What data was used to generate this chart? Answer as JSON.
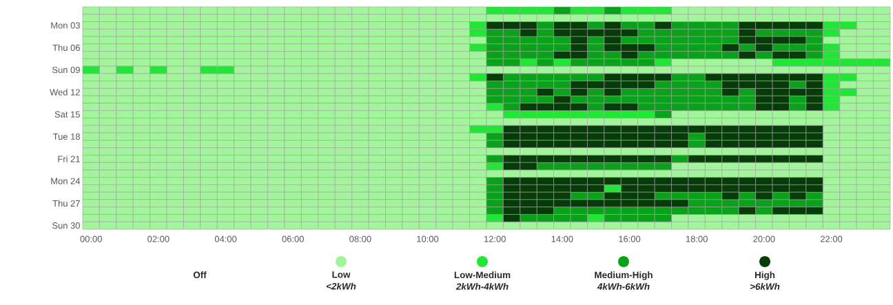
{
  "chart_data": {
    "type": "heatmap",
    "categories": [
      "00:00",
      null,
      null,
      null,
      "02:00",
      null,
      null,
      null,
      "04:00",
      null,
      null,
      null,
      "06:00",
      null,
      null,
      null,
      "08:00",
      null,
      null,
      null,
      "10:00",
      null,
      null,
      null,
      "12:00",
      null,
      null,
      null,
      "14:00",
      null,
      null,
      null,
      "16:00",
      null,
      null,
      null,
      "18:00",
      null,
      null,
      null,
      "20:00",
      null,
      null,
      null,
      "22:00",
      null,
      null,
      null
    ],
    "y_categories": [
      null,
      null,
      "Mon 03",
      null,
      null,
      "Thu 06",
      null,
      null,
      "Sun 09",
      null,
      null,
      "Wed 12",
      null,
      null,
      "Sat 15",
      null,
      null,
      "Tue 18",
      null,
      null,
      "Fri 21",
      null,
      null,
      "Mon 24",
      null,
      null,
      "Thu 27",
      null,
      null,
      "Sun 30"
    ],
    "cells": [
      [
        1,
        1,
        1,
        1,
        1,
        1,
        1,
        1,
        1,
        1,
        1,
        1,
        1,
        1,
        1,
        1,
        1,
        1,
        1,
        1,
        1,
        1,
        1,
        1,
        2,
        2,
        2,
        2,
        3,
        2,
        2,
        3,
        2,
        2,
        2,
        1,
        1,
        1,
        1,
        1,
        1,
        1,
        1,
        1,
        1,
        1,
        1,
        1
      ],
      [
        1,
        1,
        1,
        1,
        1,
        1,
        1,
        1,
        1,
        1,
        1,
        1,
        1,
        1,
        1,
        1,
        1,
        1,
        1,
        1,
        1,
        1,
        1,
        1,
        1,
        1,
        1,
        1,
        1,
        1,
        1,
        1,
        1,
        1,
        1,
        1,
        1,
        1,
        1,
        1,
        1,
        1,
        1,
        1,
        1,
        1,
        1,
        1
      ],
      [
        1,
        1,
        1,
        1,
        1,
        1,
        1,
        1,
        1,
        1,
        1,
        1,
        1,
        1,
        1,
        1,
        1,
        1,
        1,
        1,
        1,
        1,
        1,
        2,
        4,
        4,
        4,
        3,
        4,
        4,
        3,
        4,
        3,
        3,
        4,
        3,
        3,
        3,
        3,
        4,
        4,
        4,
        4,
        4,
        2,
        2,
        1,
        1
      ],
      [
        1,
        1,
        1,
        1,
        1,
        1,
        1,
        1,
        1,
        1,
        1,
        1,
        1,
        1,
        1,
        1,
        1,
        1,
        1,
        1,
        1,
        1,
        1,
        2,
        3,
        3,
        4,
        3,
        4,
        4,
        4,
        4,
        4,
        3,
        3,
        3,
        3,
        3,
        3,
        4,
        3,
        3,
        3,
        3,
        2,
        1,
        1,
        1
      ],
      [
        1,
        1,
        1,
        1,
        1,
        1,
        1,
        1,
        1,
        1,
        1,
        1,
        1,
        1,
        1,
        1,
        1,
        1,
        1,
        1,
        1,
        1,
        1,
        1,
        3,
        3,
        3,
        3,
        3,
        4,
        3,
        4,
        3,
        3,
        3,
        3,
        3,
        3,
        3,
        4,
        4,
        4,
        4,
        3,
        1,
        1,
        1,
        1
      ],
      [
        1,
        1,
        1,
        1,
        1,
        1,
        1,
        1,
        1,
        1,
        1,
        1,
        1,
        1,
        1,
        1,
        1,
        1,
        1,
        1,
        1,
        1,
        1,
        2,
        3,
        3,
        3,
        3,
        3,
        4,
        3,
        4,
        4,
        4,
        3,
        3,
        3,
        3,
        4,
        3,
        4,
        3,
        3,
        3,
        2,
        1,
        1,
        1
      ],
      [
        1,
        1,
        1,
        1,
        1,
        1,
        1,
        1,
        1,
        1,
        1,
        1,
        1,
        1,
        1,
        1,
        1,
        1,
        1,
        1,
        1,
        1,
        1,
        1,
        3,
        3,
        3,
        3,
        4,
        4,
        3,
        3,
        4,
        3,
        3,
        3,
        3,
        3,
        3,
        4,
        3,
        4,
        4,
        3,
        2,
        1,
        1,
        1
      ],
      [
        1,
        1,
        1,
        1,
        1,
        1,
        1,
        1,
        1,
        1,
        1,
        1,
        1,
        1,
        1,
        1,
        1,
        1,
        1,
        1,
        1,
        1,
        1,
        1,
        3,
        3,
        2,
        3,
        2,
        3,
        3,
        3,
        3,
        3,
        2,
        1,
        1,
        1,
        1,
        1,
        1,
        2,
        2,
        2,
        2,
        2,
        2,
        2
      ],
      [
        2,
        1,
        2,
        1,
        2,
        1,
        1,
        2,
        2,
        1,
        1,
        1,
        1,
        1,
        1,
        1,
        1,
        1,
        1,
        1,
        1,
        1,
        1,
        1,
        1,
        1,
        1,
        1,
        1,
        1,
        1,
        1,
        1,
        1,
        1,
        1,
        1,
        1,
        1,
        1,
        1,
        1,
        1,
        1,
        1,
        1,
        1,
        1
      ],
      [
        1,
        1,
        1,
        1,
        1,
        1,
        1,
        1,
        1,
        1,
        1,
        1,
        1,
        1,
        1,
        1,
        1,
        1,
        1,
        1,
        1,
        1,
        1,
        2,
        4,
        3,
        3,
        3,
        3,
        3,
        3,
        4,
        4,
        4,
        4,
        3,
        3,
        4,
        4,
        4,
        4,
        4,
        4,
        4,
        2,
        2,
        1,
        1
      ],
      [
        1,
        1,
        1,
        1,
        1,
        1,
        1,
        1,
        1,
        1,
        1,
        1,
        1,
        1,
        1,
        1,
        1,
        1,
        1,
        1,
        1,
        1,
        1,
        1,
        3,
        3,
        3,
        3,
        3,
        4,
        4,
        4,
        4,
        4,
        3,
        3,
        3,
        3,
        4,
        4,
        4,
        4,
        3,
        4,
        2,
        1,
        1,
        1
      ],
      [
        1,
        1,
        1,
        1,
        1,
        1,
        1,
        1,
        1,
        1,
        1,
        1,
        1,
        1,
        1,
        1,
        1,
        1,
        1,
        1,
        1,
        1,
        1,
        1,
        3,
        3,
        3,
        4,
        3,
        4,
        3,
        4,
        3,
        3,
        3,
        3,
        3,
        3,
        4,
        3,
        4,
        4,
        4,
        4,
        2,
        2,
        1,
        1
      ],
      [
        1,
        1,
        1,
        1,
        1,
        1,
        1,
        1,
        1,
        1,
        1,
        1,
        1,
        1,
        1,
        1,
        1,
        1,
        1,
        1,
        1,
        1,
        1,
        1,
        3,
        3,
        3,
        3,
        4,
        3,
        3,
        3,
        3,
        3,
        3,
        3,
        3,
        3,
        3,
        3,
        4,
        4,
        3,
        4,
        2,
        1,
        1,
        1
      ],
      [
        1,
        1,
        1,
        1,
        1,
        1,
        1,
        1,
        1,
        1,
        1,
        1,
        1,
        1,
        1,
        1,
        1,
        1,
        1,
        1,
        1,
        1,
        1,
        1,
        2,
        3,
        4,
        4,
        4,
        4,
        3,
        4,
        4,
        3,
        3,
        3,
        3,
        3,
        3,
        3,
        4,
        4,
        3,
        4,
        2,
        1,
        1,
        1
      ],
      [
        1,
        1,
        1,
        1,
        1,
        1,
        1,
        1,
        1,
        1,
        1,
        1,
        1,
        1,
        1,
        1,
        1,
        1,
        1,
        1,
        1,
        1,
        1,
        1,
        1,
        2,
        2,
        2,
        2,
        2,
        2,
        2,
        2,
        2,
        3,
        1,
        1,
        1,
        1,
        1,
        1,
        1,
        1,
        1,
        1,
        1,
        1,
        1
      ],
      [
        1,
        1,
        1,
        1,
        1,
        1,
        1,
        1,
        1,
        1,
        1,
        1,
        1,
        1,
        1,
        1,
        1,
        1,
        1,
        1,
        1,
        1,
        1,
        1,
        1,
        1,
        1,
        1,
        1,
        1,
        1,
        1,
        1,
        1,
        1,
        1,
        1,
        1,
        1,
        1,
        1,
        1,
        1,
        1,
        1,
        1,
        1,
        1
      ],
      [
        1,
        1,
        1,
        1,
        1,
        1,
        1,
        1,
        1,
        1,
        1,
        1,
        1,
        1,
        1,
        1,
        1,
        1,
        1,
        1,
        1,
        1,
        1,
        2,
        2,
        4,
        4,
        4,
        4,
        4,
        4,
        4,
        4,
        4,
        4,
        4,
        4,
        4,
        4,
        4,
        4,
        4,
        4,
        4,
        1,
        1,
        1,
        1
      ],
      [
        1,
        1,
        1,
        1,
        1,
        1,
        1,
        1,
        1,
        1,
        1,
        1,
        1,
        1,
        1,
        1,
        1,
        1,
        1,
        1,
        1,
        1,
        1,
        1,
        3,
        4,
        4,
        4,
        4,
        4,
        4,
        4,
        4,
        4,
        4,
        4,
        3,
        4,
        4,
        4,
        4,
        4,
        4,
        4,
        1,
        1,
        1,
        1
      ],
      [
        1,
        1,
        1,
        1,
        1,
        1,
        1,
        1,
        1,
        1,
        1,
        1,
        1,
        1,
        1,
        1,
        1,
        1,
        1,
        1,
        1,
        1,
        1,
        1,
        3,
        4,
        4,
        4,
        4,
        4,
        4,
        4,
        4,
        4,
        4,
        4,
        3,
        4,
        4,
        4,
        4,
        4,
        4,
        4,
        1,
        1,
        1,
        1
      ],
      [
        1,
        1,
        1,
        1,
        1,
        1,
        1,
        1,
        1,
        1,
        1,
        1,
        1,
        1,
        1,
        1,
        1,
        1,
        1,
        1,
        1,
        1,
        1,
        1,
        1,
        1,
        1,
        1,
        1,
        1,
        1,
        1,
        1,
        1,
        1,
        1,
        1,
        1,
        1,
        1,
        1,
        1,
        1,
        1,
        1,
        1,
        1,
        1
      ],
      [
        1,
        1,
        1,
        1,
        1,
        1,
        1,
        1,
        1,
        1,
        1,
        1,
        1,
        1,
        1,
        1,
        1,
        1,
        1,
        1,
        1,
        1,
        1,
        1,
        3,
        4,
        4,
        4,
        4,
        4,
        4,
        4,
        4,
        4,
        4,
        3,
        4,
        4,
        4,
        4,
        4,
        4,
        4,
        4,
        1,
        1,
        1,
        1
      ],
      [
        1,
        1,
        1,
        1,
        1,
        1,
        1,
        1,
        1,
        1,
        1,
        1,
        1,
        1,
        1,
        1,
        1,
        1,
        1,
        1,
        1,
        1,
        1,
        1,
        2,
        4,
        4,
        3,
        3,
        3,
        3,
        3,
        3,
        3,
        3,
        1,
        1,
        1,
        1,
        1,
        1,
        1,
        1,
        1,
        1,
        1,
        1,
        1
      ],
      [
        1,
        1,
        1,
        1,
        1,
        1,
        1,
        1,
        1,
        1,
        1,
        1,
        1,
        1,
        1,
        1,
        1,
        1,
        1,
        1,
        1,
        1,
        1,
        1,
        1,
        1,
        1,
        1,
        1,
        1,
        1,
        1,
        1,
        1,
        1,
        1,
        1,
        1,
        1,
        1,
        1,
        1,
        1,
        1,
        1,
        1,
        1,
        1
      ],
      [
        1,
        1,
        1,
        1,
        1,
        1,
        1,
        1,
        1,
        1,
        1,
        1,
        1,
        1,
        1,
        1,
        1,
        1,
        1,
        1,
        1,
        1,
        1,
        1,
        3,
        4,
        4,
        4,
        4,
        4,
        4,
        4,
        4,
        4,
        4,
        4,
        4,
        4,
        4,
        4,
        4,
        4,
        4,
        4,
        1,
        1,
        1,
        1
      ],
      [
        1,
        1,
        1,
        1,
        1,
        1,
        1,
        1,
        1,
        1,
        1,
        1,
        1,
        1,
        1,
        1,
        1,
        1,
        1,
        1,
        1,
        1,
        1,
        1,
        3,
        4,
        4,
        4,
        4,
        4,
        4,
        2,
        4,
        4,
        4,
        4,
        4,
        4,
        4,
        4,
        4,
        4,
        4,
        4,
        1,
        1,
        1,
        1
      ],
      [
        1,
        1,
        1,
        1,
        1,
        1,
        1,
        1,
        1,
        1,
        1,
        1,
        1,
        1,
        1,
        1,
        1,
        1,
        1,
        1,
        1,
        1,
        1,
        1,
        3,
        4,
        4,
        4,
        4,
        3,
        3,
        4,
        4,
        4,
        3,
        3,
        3,
        3,
        4,
        3,
        4,
        3,
        4,
        3,
        1,
        1,
        1,
        1
      ],
      [
        1,
        1,
        1,
        1,
        1,
        1,
        1,
        1,
        1,
        1,
        1,
        1,
        1,
        1,
        1,
        1,
        1,
        1,
        1,
        1,
        1,
        1,
        1,
        1,
        3,
        4,
        4,
        4,
        4,
        4,
        4,
        4,
        4,
        4,
        4,
        4,
        3,
        3,
        3,
        3,
        3,
        3,
        3,
        3,
        1,
        1,
        1,
        1
      ],
      [
        1,
        1,
        1,
        1,
        1,
        1,
        1,
        1,
        1,
        1,
        1,
        1,
        1,
        1,
        1,
        1,
        1,
        1,
        1,
        1,
        1,
        1,
        1,
        1,
        3,
        4,
        4,
        4,
        3,
        3,
        3,
        3,
        3,
        3,
        3,
        3,
        3,
        3,
        3,
        4,
        3,
        4,
        4,
        4,
        1,
        1,
        1,
        1
      ],
      [
        1,
        1,
        1,
        1,
        1,
        1,
        1,
        1,
        1,
        1,
        1,
        1,
        1,
        1,
        1,
        1,
        1,
        1,
        1,
        1,
        1,
        1,
        1,
        1,
        2,
        4,
        3,
        3,
        3,
        3,
        2,
        3,
        3,
        3,
        3,
        1,
        1,
        1,
        1,
        1,
        1,
        1,
        1,
        1,
        1,
        1,
        1,
        1
      ],
      [
        1,
        1,
        1,
        1,
        1,
        1,
        1,
        1,
        1,
        1,
        1,
        1,
        1,
        1,
        1,
        1,
        1,
        1,
        1,
        1,
        1,
        1,
        1,
        1,
        1,
        1,
        1,
        1,
        1,
        1,
        1,
        1,
        1,
        1,
        1,
        1,
        1,
        1,
        1,
        1,
        1,
        1,
        1,
        1,
        1,
        1,
        1,
        1
      ]
    ],
    "cticks": [
      {
        "value": 0,
        "label": "Off"
      },
      {
        "value": 1,
        "label": "Low *<2kWh*"
      },
      {
        "value": 2,
        "label": "Low-Medium *2kWh-4kWh*"
      },
      {
        "value": 3,
        "label": "Medium-High *4kWh-6kWh*"
      },
      {
        "value": 4,
        "label": "High *>6kWh*"
      }
    ],
    "colors": [
      null,
      "#a3f59b",
      "#22e636",
      "#0aa21a",
      "#063c07"
    ]
  }
}
